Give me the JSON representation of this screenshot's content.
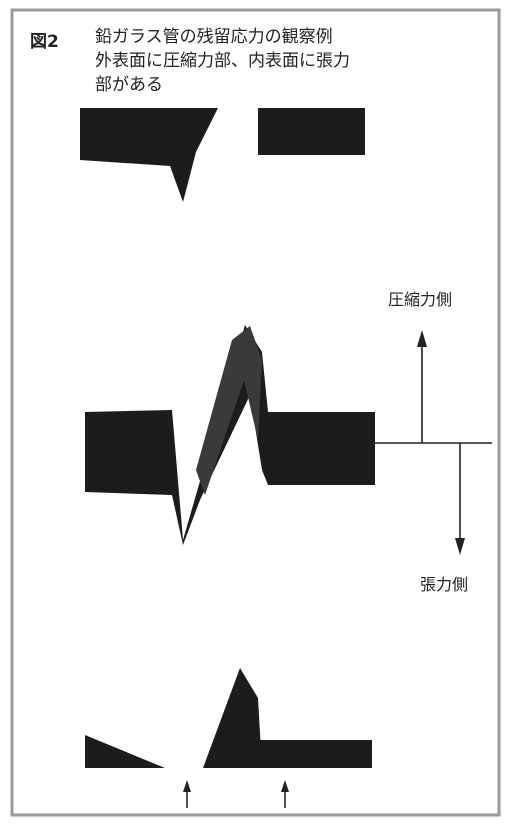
{
  "figure": {
    "label": "図2",
    "caption": [
      "鉛ガラス管の残留応力の観察例",
      "外表面に圧縮力部、内表面に張力",
      "部がある"
    ]
  },
  "annotations": {
    "compression": "圧縮力側",
    "tension": "張力側"
  }
}
